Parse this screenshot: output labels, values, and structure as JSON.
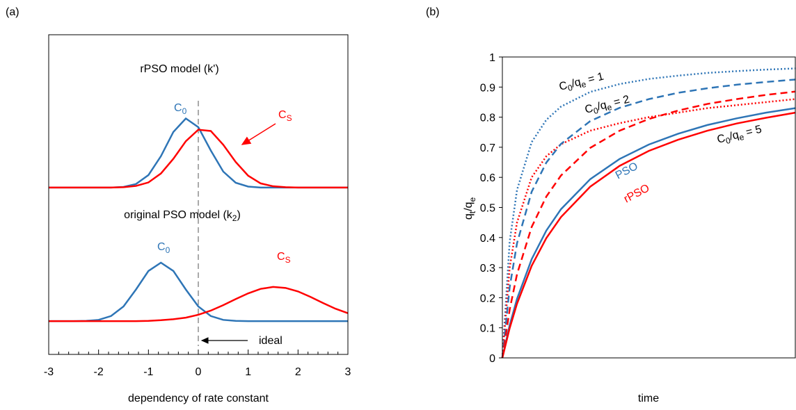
{
  "chart_data": [
    {
      "type": "line",
      "panel": "(a)",
      "xlabel": "dependency of rate constant",
      "xlim": [
        -3,
        3
      ],
      "xticks": [
        -3,
        -2,
        -1,
        0,
        1,
        2,
        3
      ],
      "xminorticks": [
        -2.8,
        -2.6,
        -2.4,
        -2.2,
        -1.8,
        -1.6,
        -1.4,
        -1.2,
        -0.8,
        -0.6,
        -0.4,
        -0.2,
        0.2,
        0.4,
        0.6,
        0.8,
        1.2,
        1.4,
        1.6,
        1.8,
        2.2,
        2.4,
        2.6,
        2.8
      ],
      "ylim": [
        0,
        1
      ],
      "vline": 0,
      "x": [
        -3,
        -2.75,
        -2.5,
        -2.25,
        -2,
        -1.75,
        -1.5,
        -1.25,
        -1,
        -0.75,
        -0.5,
        -0.25,
        0,
        0.25,
        0.5,
        0.75,
        1,
        1.25,
        1.5,
        1.75,
        2,
        2.25,
        2.5,
        2.75,
        3
      ],
      "series": [
        {
          "color": "#2e75b6",
          "dash": "solid",
          "values": [
            0.522,
            0.522,
            0.522,
            0.522,
            0.522,
            0.522,
            0.524,
            0.533,
            0.561,
            0.62,
            0.696,
            0.738,
            0.711,
            0.638,
            0.572,
            0.537,
            0.525,
            0.522,
            0.522,
            0.522,
            0.522,
            0.522,
            0.522,
            0.522,
            0.522
          ]
        },
        {
          "color": "#ff0000",
          "dash": "solid",
          "values": [
            0.522,
            0.522,
            0.522,
            0.522,
            0.522,
            0.522,
            0.523,
            0.527,
            0.538,
            0.566,
            0.612,
            0.667,
            0.703,
            0.699,
            0.656,
            0.602,
            0.559,
            0.535,
            0.526,
            0.523,
            0.522,
            0.522,
            0.522,
            0.522,
            0.522
          ]
        },
        {
          "color": "#2e75b6",
          "dash": "solid",
          "values": [
            0.104,
            0.104,
            0.104,
            0.105,
            0.108,
            0.12,
            0.15,
            0.203,
            0.261,
            0.287,
            0.261,
            0.203,
            0.15,
            0.12,
            0.108,
            0.105,
            0.104,
            0.104,
            0.104,
            0.104,
            0.104,
            0.104,
            0.104,
            0.104,
            0.104
          ]
        },
        {
          "color": "#ff0000",
          "dash": "solid",
          "values": [
            0.104,
            0.104,
            0.104,
            0.104,
            0.104,
            0.104,
            0.104,
            0.104,
            0.105,
            0.107,
            0.11,
            0.115,
            0.124,
            0.137,
            0.154,
            0.173,
            0.191,
            0.205,
            0.211,
            0.208,
            0.197,
            0.18,
            0.161,
            0.143,
            0.129
          ]
        }
      ],
      "annotations": [
        [
          "rPSO model (k')"
        ],
        [
          "C",
          "0"
        ],
        [
          "C",
          "S"
        ],
        [
          "original PSO model (k",
          "2",
          ")"
        ],
        [
          "C",
          "0"
        ],
        [
          "C",
          "S"
        ],
        [
          "ideal"
        ]
      ]
    },
    {
      "type": "line",
      "panel": "(b)",
      "xlabel": "time",
      "ylabel": [
        "q",
        "t",
        "/q",
        "e"
      ],
      "xlim": [
        0,
        10
      ],
      "ylim": [
        0,
        1
      ],
      "yticks": [
        0,
        0.1,
        0.2,
        0.3,
        0.4,
        0.5,
        0.6,
        0.7,
        0.8,
        0.9,
        1
      ],
      "x": [
        0,
        0.25,
        0.5,
        1,
        1.5,
        2,
        3,
        4,
        5,
        6,
        7,
        8,
        9,
        10
      ],
      "series": [
        {
          "color": "#2e75b6",
          "dash": "dotted",
          "values": [
            0,
            0.387,
            0.558,
            0.717,
            0.791,
            0.835,
            0.884,
            0.91,
            0.927,
            0.938,
            0.947,
            0.953,
            0.958,
            0.962
          ]
        },
        {
          "color": "#ff0000",
          "dash": "dotted",
          "values": [
            0,
            0.3,
            0.45,
            0.6,
            0.67,
            0.71,
            0.755,
            0.78,
            0.8,
            0.815,
            0.83,
            0.84,
            0.85,
            0.86
          ]
        },
        {
          "color": "#2e75b6",
          "dash": "dashed",
          "values": [
            0,
            0.235,
            0.381,
            0.552,
            0.649,
            0.711,
            0.787,
            0.831,
            0.86,
            0.881,
            0.896,
            0.908,
            0.917,
            0.925
          ]
        },
        {
          "color": "#ff0000",
          "dash": "dashed",
          "values": [
            0,
            0.161,
            0.278,
            0.435,
            0.536,
            0.606,
            0.698,
            0.755,
            0.794,
            0.822,
            0.844,
            0.86,
            0.874,
            0.885
          ]
        },
        {
          "color": "#2e75b6",
          "dash": "solid",
          "values": [
            0,
            0.109,
            0.196,
            0.328,
            0.423,
            0.494,
            0.594,
            0.661,
            0.709,
            0.745,
            0.774,
            0.796,
            0.815,
            0.83
          ]
        },
        {
          "color": "#ff0000",
          "dash": "solid",
          "values": [
            0,
            0.099,
            0.18,
            0.306,
            0.398,
            0.468,
            0.569,
            0.638,
            0.688,
            0.725,
            0.755,
            0.779,
            0.798,
            0.815
          ]
        }
      ],
      "annotations": [
        [
          "C",
          "0",
          "/q",
          "e",
          " = 1"
        ],
        [
          "C",
          "0",
          "/q",
          "e",
          " = 2"
        ],
        [
          "PSO"
        ],
        [
          "rPSO"
        ],
        [
          "C",
          "0",
          "/q",
          "e",
          " = 5"
        ]
      ]
    }
  ]
}
